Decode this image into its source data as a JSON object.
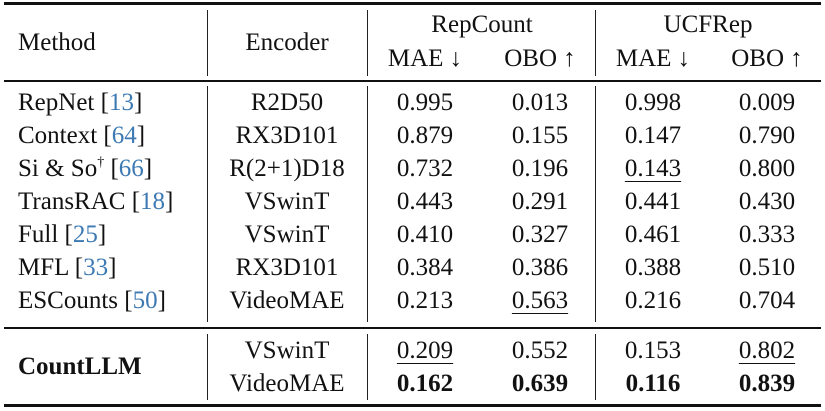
{
  "table": {
    "columns": {
      "method": "Method",
      "encoder": "Encoder",
      "groups": [
        {
          "label": "RepCount",
          "metrics": [
            "MAE ↓",
            "OBO ↑"
          ]
        },
        {
          "label": "UCFRep",
          "metrics": [
            "MAE ↓",
            "OBO ↑"
          ]
        }
      ]
    },
    "rows": [
      {
        "method": "RepNet",
        "sup": "",
        "cite": "13",
        "encoder": "R2D50",
        "values": [
          "0.995",
          "0.013",
          "0.998",
          "0.009"
        ],
        "underline": [],
        "bold": []
      },
      {
        "method": "Context",
        "sup": "",
        "cite": "64",
        "encoder": "RX3D101",
        "values": [
          "0.879",
          "0.155",
          "0.147",
          "0.790"
        ],
        "underline": [],
        "bold": []
      },
      {
        "method": "Si & So",
        "sup": "†",
        "cite": "66",
        "encoder": "R(2+1)D18",
        "values": [
          "0.732",
          "0.196",
          "0.143",
          "0.800"
        ],
        "underline": [
          2
        ],
        "bold": []
      },
      {
        "method": "TransRAC",
        "sup": "",
        "cite": "18",
        "encoder": "VSwinT",
        "values": [
          "0.443",
          "0.291",
          "0.441",
          "0.430"
        ],
        "underline": [],
        "bold": []
      },
      {
        "method": "Full",
        "sup": "",
        "cite": "25",
        "encoder": "VSwinT",
        "values": [
          "0.410",
          "0.327",
          "0.461",
          "0.333"
        ],
        "underline": [],
        "bold": []
      },
      {
        "method": "MFL",
        "sup": "",
        "cite": "33",
        "encoder": "RX3D101",
        "values": [
          "0.384",
          "0.386",
          "0.388",
          "0.510"
        ],
        "underline": [],
        "bold": []
      },
      {
        "method": "ESCounts",
        "sup": "",
        "cite": "50",
        "encoder": "VideoMAE",
        "values": [
          "0.213",
          "0.563",
          "0.216",
          "0.704"
        ],
        "underline": [
          1
        ],
        "bold": []
      }
    ],
    "ours": {
      "method": "CountLLM",
      "rows": [
        {
          "encoder": "VSwinT",
          "values": [
            "0.209",
            "0.552",
            "0.153",
            "0.802"
          ],
          "underline": [
            0,
            3
          ],
          "bold": []
        },
        {
          "encoder": "VideoMAE",
          "values": [
            "0.162",
            "0.639",
            "0.116",
            "0.839"
          ],
          "underline": [],
          "bold": [
            0,
            1,
            2,
            3
          ]
        }
      ]
    }
  },
  "colors": {
    "text": "#111111",
    "citation": "#3d7ab3",
    "background": "#ffffff"
  }
}
